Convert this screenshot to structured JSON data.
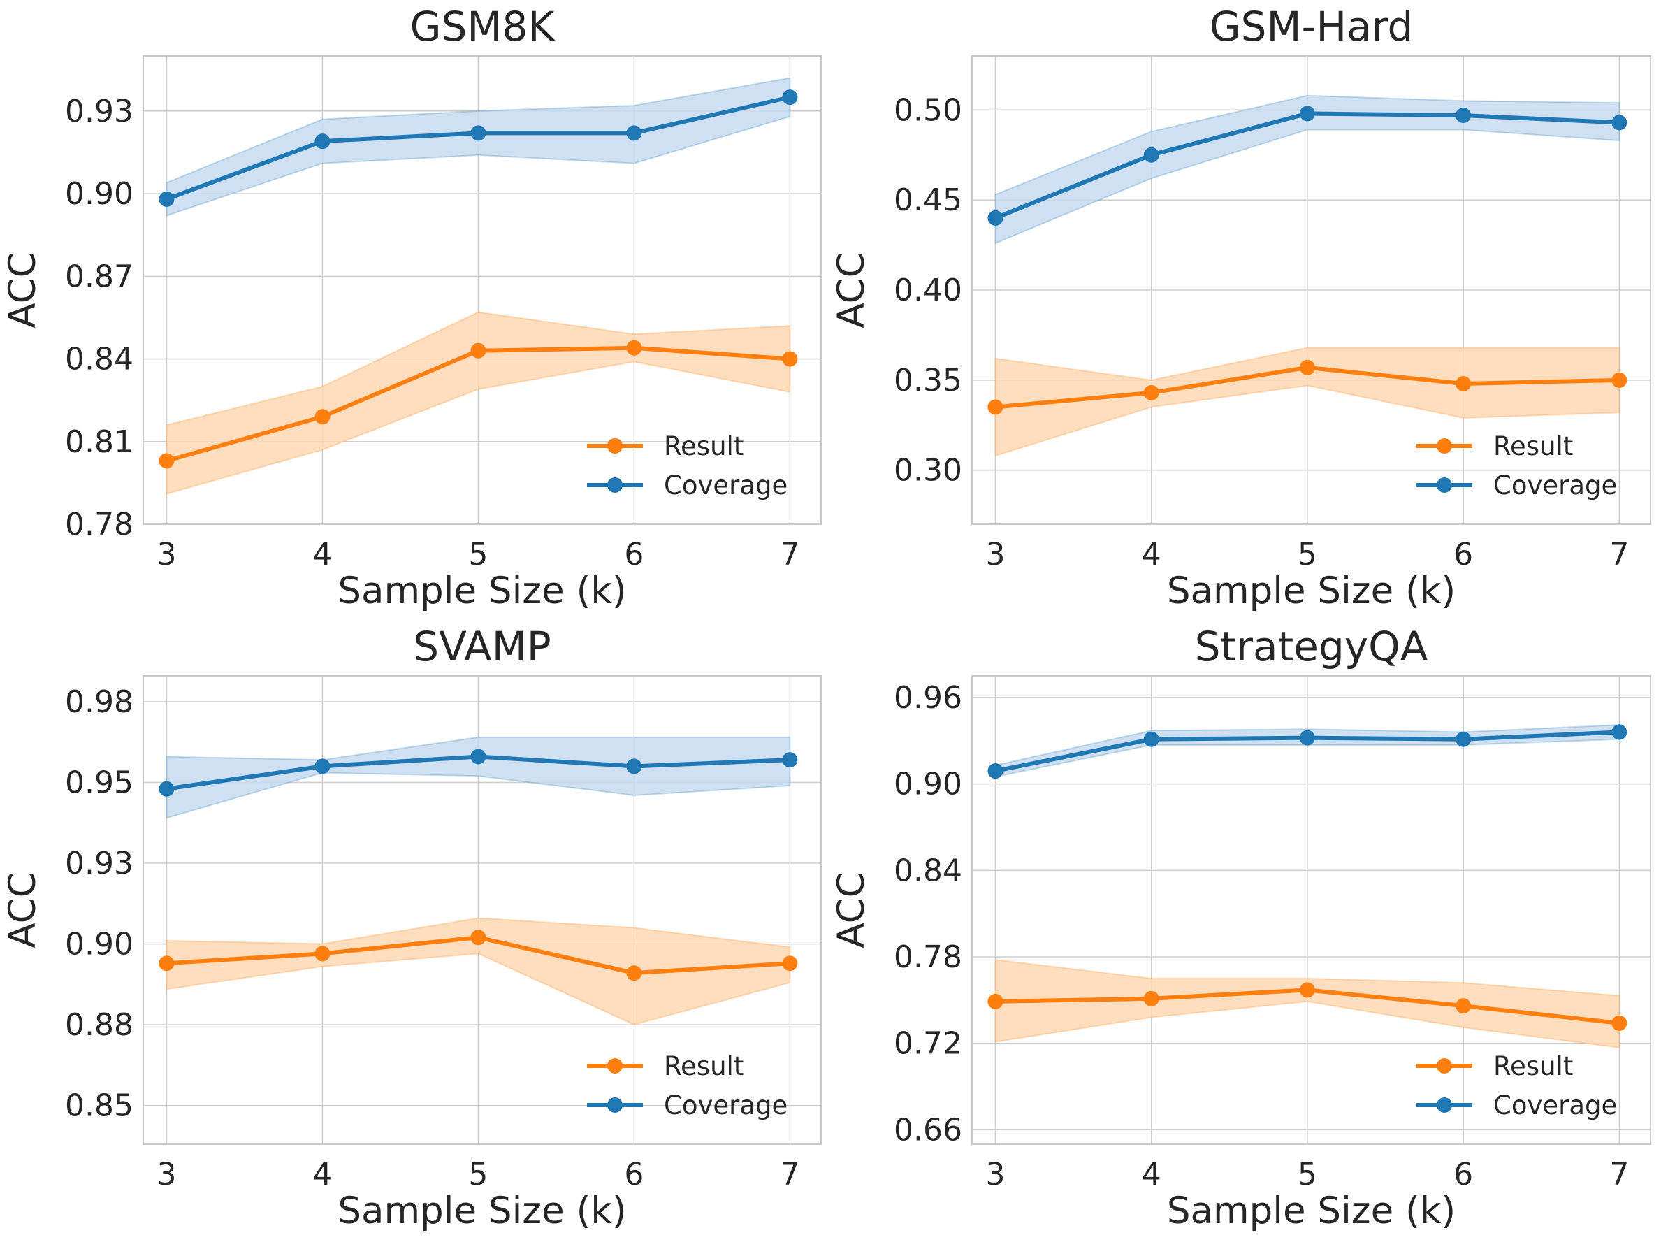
{
  "colors": {
    "result": "#ff7f0e",
    "coverage": "#1f77b4",
    "result_band": "#ffd8b5",
    "coverage_band": "#c6dbef"
  },
  "legend": {
    "result": "Result",
    "coverage": "Coverage"
  },
  "chart_data": [
    {
      "type": "line",
      "title": "GSM8K",
      "xlabel": "Sample Size (k)",
      "ylabel": "ACC",
      "x": [
        3,
        4,
        5,
        6,
        7
      ],
      "xlim": [
        2.85,
        7.2
      ],
      "ylim": [
        0.78,
        0.95
      ],
      "yticks": [
        0.78,
        0.81,
        0.84,
        0.87,
        0.9,
        0.93
      ],
      "ytick_labels": [
        "0.78",
        "0.81",
        "0.84",
        "0.87",
        "0.90",
        "0.93"
      ],
      "legend_position": "lower-right",
      "series": [
        {
          "name": "Result",
          "values": [
            0.803,
            0.819,
            0.843,
            0.844,
            0.84
          ],
          "lower": [
            0.791,
            0.807,
            0.829,
            0.839,
            0.828
          ],
          "upper": [
            0.816,
            0.83,
            0.857,
            0.849,
            0.852
          ]
        },
        {
          "name": "Coverage",
          "values": [
            0.898,
            0.919,
            0.922,
            0.922,
            0.935
          ],
          "lower": [
            0.892,
            0.911,
            0.914,
            0.911,
            0.928
          ],
          "upper": [
            0.904,
            0.927,
            0.93,
            0.932,
            0.942
          ]
        }
      ]
    },
    {
      "type": "line",
      "title": "GSM-Hard",
      "xlabel": "Sample Size (k)",
      "ylabel": "ACC",
      "x": [
        3,
        4,
        5,
        6,
        7
      ],
      "xlim": [
        2.85,
        7.2
      ],
      "ylim": [
        0.27,
        0.53
      ],
      "yticks": [
        0.3,
        0.35,
        0.4,
        0.45,
        0.5
      ],
      "ytick_labels": [
        "0.30",
        "0.35",
        "0.40",
        "0.45",
        "0.50"
      ],
      "legend_position": "lower-right",
      "series": [
        {
          "name": "Result",
          "values": [
            0.335,
            0.343,
            0.357,
            0.348,
            0.35
          ],
          "lower": [
            0.308,
            0.335,
            0.347,
            0.329,
            0.332
          ],
          "upper": [
            0.362,
            0.35,
            0.368,
            0.368,
            0.368
          ]
        },
        {
          "name": "Coverage",
          "values": [
            0.44,
            0.475,
            0.498,
            0.497,
            0.493
          ],
          "lower": [
            0.426,
            0.462,
            0.489,
            0.489,
            0.483
          ],
          "upper": [
            0.453,
            0.488,
            0.508,
            0.505,
            0.504
          ]
        }
      ]
    },
    {
      "type": "line",
      "title": "SVAMP",
      "xlabel": "Sample Size (k)",
      "ylabel": "ACC",
      "x": [
        3,
        4,
        5,
        6,
        7
      ],
      "xlim": [
        2.85,
        7.2
      ],
      "ylim": [
        0.838,
        0.983
      ],
      "yticks": [
        0.85,
        0.875,
        0.9,
        0.925,
        0.95,
        0.975
      ],
      "ytick_labels": [
        "0.85",
        "0.88",
        "0.90",
        "0.93",
        "0.95",
        "0.98"
      ],
      "legend_position": "lower-right",
      "series": [
        {
          "name": "Result",
          "values": [
            0.894,
            0.897,
            0.902,
            0.891,
            0.894
          ],
          "lower": [
            0.886,
            0.893,
            0.897,
            0.875,
            0.888
          ],
          "upper": [
            0.901,
            0.9,
            0.908,
            0.905,
            0.899
          ]
        },
        {
          "name": "Coverage",
          "values": [
            0.948,
            0.955,
            0.958,
            0.955,
            0.957
          ],
          "lower": [
            0.939,
            0.953,
            0.952,
            0.946,
            0.949
          ],
          "upper": [
            0.958,
            0.957,
            0.964,
            0.964,
            0.964
          ]
        }
      ]
    },
    {
      "type": "line",
      "title": "StrategyQA",
      "xlabel": "Sample Size (k)",
      "ylabel": "ACC",
      "x": [
        3,
        4,
        5,
        6,
        7
      ],
      "xlim": [
        2.85,
        7.2
      ],
      "ylim": [
        0.65,
        0.975
      ],
      "yticks": [
        0.66,
        0.72,
        0.78,
        0.84,
        0.9,
        0.96
      ],
      "ytick_labels": [
        "0.66",
        "0.72",
        "0.78",
        "0.84",
        "0.90",
        "0.96"
      ],
      "legend_position": "lower-right",
      "series": [
        {
          "name": "Result",
          "values": [
            0.749,
            0.751,
            0.757,
            0.746,
            0.734
          ],
          "lower": [
            0.721,
            0.738,
            0.749,
            0.731,
            0.717
          ],
          "upper": [
            0.778,
            0.765,
            0.765,
            0.762,
            0.753
          ]
        },
        {
          "name": "Coverage",
          "values": [
            0.909,
            0.931,
            0.932,
            0.931,
            0.936
          ],
          "lower": [
            0.905,
            0.927,
            0.927,
            0.927,
            0.931
          ],
          "upper": [
            0.913,
            0.937,
            0.938,
            0.936,
            0.941
          ]
        }
      ]
    }
  ]
}
